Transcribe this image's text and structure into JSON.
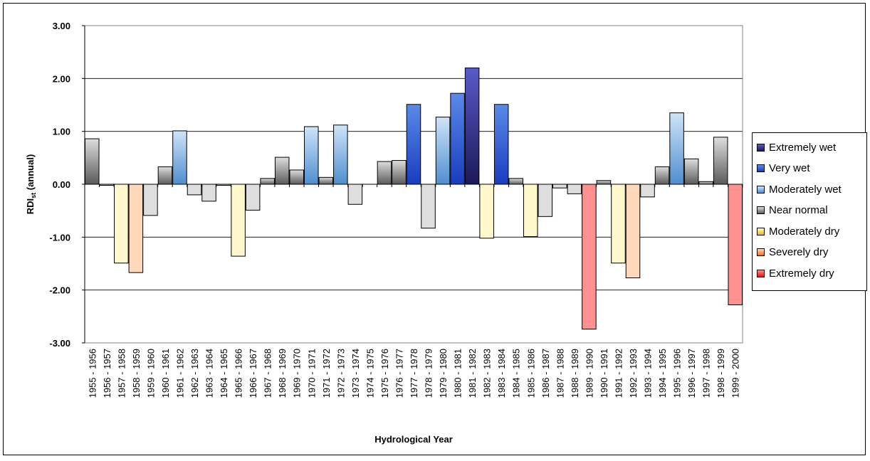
{
  "chart_data": {
    "type": "bar",
    "title": "",
    "xlabel": "Hydrological Year",
    "ylabel_main": "RDI",
    "ylabel_sub": "st",
    "ylabel_rest": " (annual)",
    "ylim": [
      -3,
      3
    ],
    "yticks": [
      "3.00",
      "2.00",
      "1.00",
      "0.00",
      "-1.00",
      "-2.00",
      "-3.00"
    ],
    "ytick_values": [
      3,
      2,
      1,
      0,
      -1,
      -2,
      -3
    ],
    "grid": true,
    "legend_position": "right",
    "categories": [
      "1955 - 1956",
      "1956 - 1957",
      "1957 - 1958",
      "1958 - 1959",
      "1959 - 1960",
      "1960 - 1961",
      "1961 - 1962",
      "1962 - 1963",
      "1963 - 1964",
      "1964 - 1965",
      "1965 - 1966",
      "1966 - 1967",
      "1967 - 1968",
      "1968 - 1969",
      "1969 - 1970",
      "1970 - 1971",
      "1971 - 1972",
      "1972 - 1973",
      "1973 - 1974",
      "1974 - 1975",
      "1975 - 1976",
      "1976 - 1977",
      "1977 - 1978",
      "1978 - 1979",
      "1979 - 1980",
      "1980 - 1981",
      "1981 - 1982",
      "1982 - 1983",
      "1983 - 1984",
      "1984 - 1985",
      "1985 - 1986",
      "1986 - 1987",
      "1987 - 1988",
      "1988 - 1989",
      "1989 - 1990",
      "1990 - 1991",
      "1991 - 1992",
      "1992 - 1993",
      "1993 - 1994",
      "1994 - 1995",
      "1995 - 1996",
      "1996 - 1997",
      "1997 - 1998",
      "1998 - 1999",
      "1999 - 2000"
    ],
    "values": [
      0.86,
      -0.02,
      -1.49,
      -1.67,
      -0.59,
      0.33,
      1.01,
      -0.2,
      -0.32,
      -0.02,
      -1.36,
      -0.49,
      0.11,
      0.51,
      0.27,
      1.09,
      0.13,
      1.12,
      -0.38,
      0.0,
      0.43,
      0.45,
      1.51,
      -0.83,
      1.27,
      1.72,
      2.2,
      -1.02,
      1.51,
      0.11,
      -0.99,
      -0.61,
      -0.07,
      -0.18,
      -2.74,
      0.07,
      -1.49,
      -1.77,
      -0.24,
      0.33,
      1.35,
      0.48,
      0.05,
      0.89,
      -2.28
    ],
    "classes": [
      "near",
      "near",
      "moddry",
      "sevdry",
      "near",
      "near",
      "modwet",
      "near",
      "near",
      "near",
      "moddry",
      "near",
      "near",
      "near",
      "near",
      "modwet",
      "near",
      "modwet",
      "near",
      "near",
      "near",
      "near",
      "verywet",
      "near",
      "modwet",
      "verywet",
      "extwet",
      "moddry",
      "verywet",
      "near",
      "moddry",
      "near",
      "near",
      "near",
      "extdry",
      "near",
      "moddry",
      "sevdry",
      "near",
      "near",
      "modwet",
      "near",
      "near",
      "near",
      "extdry"
    ],
    "legend": [
      {
        "key": "extwet",
        "label": "Extremely wet",
        "light": "#5a5ac8",
        "dark": "#1a1a5a"
      },
      {
        "key": "verywet",
        "label": "Very wet",
        "light": "#5a8ae8",
        "dark": "#1a3cc0"
      },
      {
        "key": "modwet",
        "label": "Moderately wet",
        "light": "#cfe4f8",
        "dark": "#4f8ed0"
      },
      {
        "key": "near",
        "label": "Near normal",
        "light": "#dedede",
        "dark": "#5a5a5a"
      },
      {
        "key": "moddry",
        "label": "Moderately dry",
        "light": "#fff8cc",
        "dark": "#f0b800"
      },
      {
        "key": "sevdry",
        "label": "Severely dry",
        "light": "#ffd8bc",
        "dark": "#f07018"
      },
      {
        "key": "extdry",
        "label": "Extremely dry",
        "light": "#ff9090",
        "dark": "#e81010"
      }
    ]
  }
}
